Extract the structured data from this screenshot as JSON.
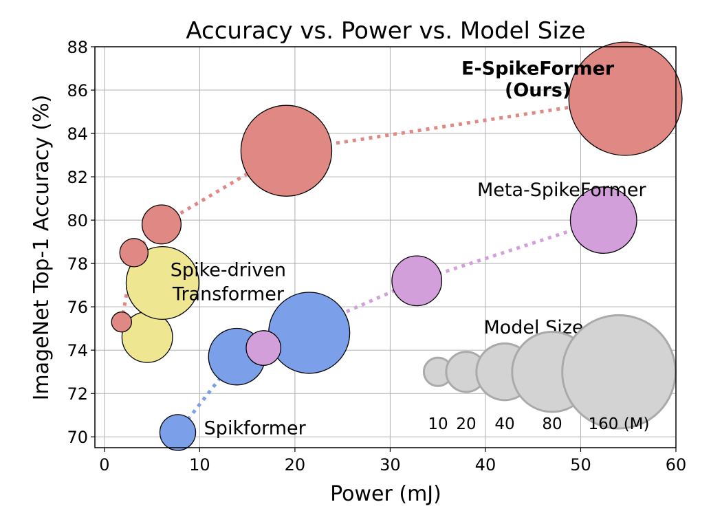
{
  "chart_data": {
    "type": "scatter",
    "title": "Accuracy vs. Power vs. Model Size",
    "xlabel": "Power (mJ)",
    "ylabel": "ImageNet Top-1 Accuracy (%)",
    "xlim": [
      -1,
      60
    ],
    "ylim": [
      69.5,
      88
    ],
    "xticks": [
      0,
      10,
      20,
      30,
      40,
      50,
      60
    ],
    "yticks": [
      70,
      72,
      74,
      76,
      78,
      80,
      82,
      84,
      86,
      88
    ],
    "grid": true,
    "series": [
      {
        "key": "spikformer",
        "color": "#7b9fe8",
        "line_color": "#7b9fe8",
        "points": [
          {
            "x": 7.7,
            "y": 70.2,
            "size": 16
          },
          {
            "x": 13.9,
            "y": 73.7,
            "size": 40
          },
          {
            "x": 21.5,
            "y": 74.8,
            "size": 82
          }
        ]
      },
      {
        "key": "spike-driven-transformer",
        "color": "#eee690",
        "line_color": "#f0e68c",
        "points": [
          {
            "x": 4.5,
            "y": 74.6,
            "size": 32
          },
          {
            "x": 6.1,
            "y": 77.1,
            "size": 66
          }
        ]
      },
      {
        "key": "meta-spikeformer",
        "color": "#d39fdb",
        "line_color": "#d39fdb",
        "points": [
          {
            "x": 16.7,
            "y": 74.1,
            "size": 15
          },
          {
            "x": 32.8,
            "y": 77.2,
            "size": 31
          },
          {
            "x": 52.4,
            "y": 80.0,
            "size": 55
          }
        ]
      },
      {
        "key": "e-spikeformer",
        "color": "#e08883",
        "line_color": "#e08883",
        "points": [
          {
            "x": 1.8,
            "y": 75.3,
            "size": 5
          },
          {
            "x": 3.1,
            "y": 78.5,
            "size": 10
          },
          {
            "x": 6.0,
            "y": 79.8,
            "size": 19
          },
          {
            "x": 19.1,
            "y": 83.2,
            "size": 103
          },
          {
            "x": 54.7,
            "y": 85.6,
            "size": 160
          }
        ]
      }
    ],
    "annotations": [
      {
        "text": "E-SpikeFormer",
        "x": 45.5,
        "y": 87.0,
        "bold": true
      },
      {
        "text": "(Ours)",
        "x": 45.5,
        "y": 86.0,
        "bold": true
      },
      {
        "text": "Meta-SpikeFormer",
        "x": 48.0,
        "y": 81.4,
        "bold": false
      },
      {
        "text": "Spike-driven",
        "x": 13.0,
        "y": 77.7,
        "bold": false
      },
      {
        "text": "Transformer",
        "x": 13.0,
        "y": 76.6,
        "bold": false
      },
      {
        "text": "Spikformer",
        "x": 15.8,
        "y": 70.4,
        "bold": false
      }
    ],
    "size_legend": {
      "title": "Model Size",
      "sizes": [
        10,
        20,
        40,
        80,
        160
      ],
      "labels": [
        "10",
        "20",
        "40",
        "80",
        "160 (M)"
      ],
      "color": "#d3d3d3",
      "edge_color": "#aaaaaa"
    }
  }
}
